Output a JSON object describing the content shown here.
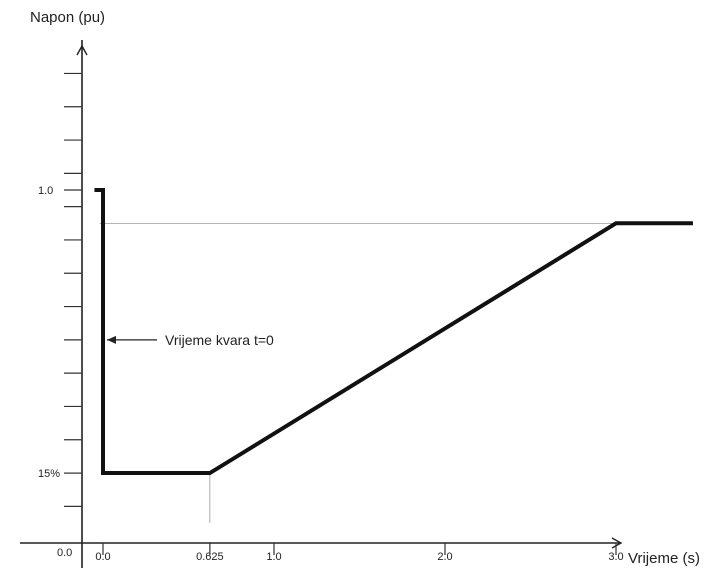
{
  "chart_data": {
    "type": "line",
    "ylabel": "Napon (pu)",
    "xlabel": "Vrijeme (s)",
    "x_ticks": [
      {
        "value": 0.0,
        "label": "0.0"
      },
      {
        "value": 0.625,
        "label": "0.625"
      },
      {
        "value": 1.0,
        "label": "1.0"
      },
      {
        "value": 2.0,
        "label": "2.0"
      },
      {
        "value": 3.0,
        "label": "3.0"
      }
    ],
    "y_ticks": [
      {
        "value": 1.0,
        "label": "1.0"
      },
      {
        "value": 0.15,
        "label": "15%"
      }
    ],
    "origin_label": "0.0",
    "y_minor_ticks": [
      0.05,
      0.15,
      0.25,
      0.35,
      0.45,
      0.55,
      0.65,
      0.75,
      0.85,
      0.95,
      1.05,
      1.15,
      1.25,
      1.35
    ],
    "xlim": [
      -0.15,
      3.55
    ],
    "ylim": [
      -0.05,
      1.4
    ],
    "series": [
      {
        "points": [
          {
            "x": -0.05,
            "y": 1.0
          },
          {
            "x": 0.0,
            "y": 1.0
          },
          {
            "x": 0.0,
            "y": 0.15
          },
          {
            "x": 0.625,
            "y": 0.15
          },
          {
            "x": 3.0,
            "y": 0.9
          },
          {
            "x": 3.45,
            "y": 0.9
          }
        ]
      }
    ],
    "reference_lines": [
      {
        "orientation": "horizontal",
        "y": 0.9,
        "x_from": -0.02,
        "x_to": 3.0
      },
      {
        "orientation": "vertical",
        "x": 0.625,
        "y_from": 0.0,
        "y_to": 0.15
      }
    ],
    "annotations": [
      {
        "text": "Vrijeme kvara t=0",
        "x": 0.0,
        "y": 0.55
      }
    ],
    "grid": false,
    "line_color": "#111111"
  }
}
